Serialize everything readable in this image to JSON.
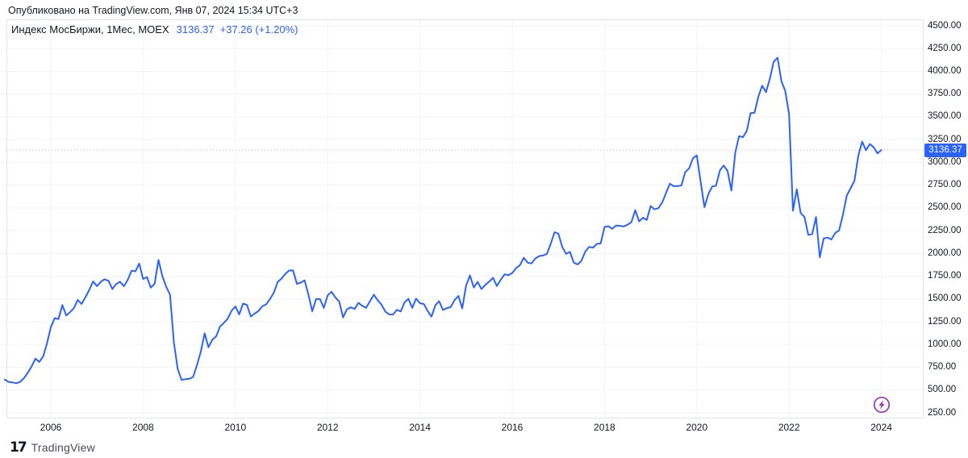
{
  "publication": {
    "text": "Опубликовано на TradingView.com, Янв 07, 2024 15:34 UTC+3"
  },
  "legend": {
    "symbol_title": "Индекс МосБиржи, 1Мес, MOEX",
    "last_price": "3136.37",
    "change": "+37.26 (+1.20%)"
  },
  "price_scale": {
    "labels": [
      "4500.00",
      "4250.00",
      "4000.00",
      "3750.00",
      "3500.00",
      "3250.00",
      "3000.00",
      "2750.00",
      "2500.00",
      "2250.00",
      "2000.00",
      "1750.00",
      "1500.00",
      "1250.00",
      "1000.00",
      "750.00",
      "500.00",
      "250.00"
    ],
    "price_label": "3136.37"
  },
  "time_scale": {
    "years": [
      "2006",
      "2008",
      "2010",
      "2012",
      "2014",
      "2016",
      "2018",
      "2020",
      "2022",
      "2024"
    ]
  },
  "footer": {
    "logo_glyph": "17",
    "brand": "TradingView"
  },
  "icons": {
    "marker": "lightning-icon"
  },
  "colors": {
    "line": "#2962ff",
    "badge_bg": "#2962ff",
    "badge_text": "#ffffff",
    "grid": "#f0f3fa",
    "axis_border": "#e0e3eb",
    "text": "#131722",
    "change_text": "#2962ff",
    "dotted_price_line": "#b2b5be",
    "lightning": "#9c36b5"
  },
  "chart_data": {
    "type": "line",
    "title": "Индекс МосБиржи, 1Мес, MOEX",
    "xlabel": "",
    "ylabel": "",
    "grid": true,
    "legend_position": "top-left",
    "x_start_year": 2005,
    "x_start_month": 1,
    "frequency": "monthly",
    "x_tick_labels": [
      "2006",
      "2008",
      "2010",
      "2012",
      "2014",
      "2016",
      "2018",
      "2020",
      "2022",
      "2024"
    ],
    "ylim": [
      250,
      4500
    ],
    "y_tick_step": 250,
    "last_value": 3136.37,
    "last_change": 37.26,
    "last_change_pct": 1.2,
    "values": [
      615,
      590,
      585,
      575,
      590,
      630,
      690,
      760,
      845,
      810,
      870,
      1011,
      1190,
      1290,
      1280,
      1434,
      1320,
      1355,
      1400,
      1490,
      1445,
      1520,
      1600,
      1693,
      1642,
      1690,
      1716,
      1700,
      1610,
      1664,
      1690,
      1640,
      1710,
      1811,
      1805,
      1889,
      1720,
      1740,
      1625,
      1668,
      1930,
      1754,
      1635,
      1547,
      1028,
      732,
      611,
      620,
      624,
      644,
      772,
      920,
      1123,
      971,
      1053,
      1090,
      1197,
      1237,
      1284,
      1370,
      1419,
      1331,
      1450,
      1436,
      1309,
      1339,
      1368,
      1421,
      1440,
      1500,
      1570,
      1687,
      1724,
      1777,
      1813,
      1814,
      1666,
      1680,
      1705,
      1546,
      1366,
      1500,
      1499,
      1402,
      1540,
      1580,
      1518,
      1472,
      1298,
      1387,
      1408,
      1391,
      1458,
      1425,
      1404,
      1475,
      1547,
      1487,
      1438,
      1362,
      1331,
      1330,
      1381,
      1364,
      1463,
      1502,
      1403,
      1504,
      1454,
      1445,
      1369,
      1306,
      1431,
      1476,
      1379,
      1400,
      1411,
      1488,
      1534,
      1397,
      1647,
      1759,
      1626,
      1688,
      1609,
      1655,
      1691,
      1733,
      1643,
      1711,
      1771,
      1761,
      1785,
      1840,
      1871,
      1953,
      1899,
      1891,
      1945,
      1971,
      1978,
      1994,
      2105,
      2233,
      2217,
      2072,
      1996,
      2017,
      1900,
      1879,
      1920,
      2022,
      2072,
      2064,
      2105,
      2110,
      2290,
      2300,
      2271,
      2307,
      2303,
      2296,
      2316,
      2346,
      2475,
      2353,
      2393,
      2369,
      2521,
      2485,
      2497,
      2559,
      2665,
      2766,
      2739,
      2740,
      2747,
      2894,
      2935,
      3045,
      3077,
      2785,
      2509,
      2651,
      2735,
      2743,
      2912,
      2966,
      2906,
      2691,
      3108,
      3289,
      3277,
      3347,
      3542,
      3545,
      3722,
      3842,
      3772,
      3919,
      4104,
      4150,
      3891,
      3787,
      3530,
      2470,
      2704,
      2445,
      2401,
      2204,
      2212,
      2400,
      1957,
      2166,
      2174,
      2154,
      2225,
      2253,
      2423,
      2635,
      2717,
      2797,
      3073,
      3228,
      3134,
      3201,
      3166,
      3099,
      3136.37
    ]
  }
}
